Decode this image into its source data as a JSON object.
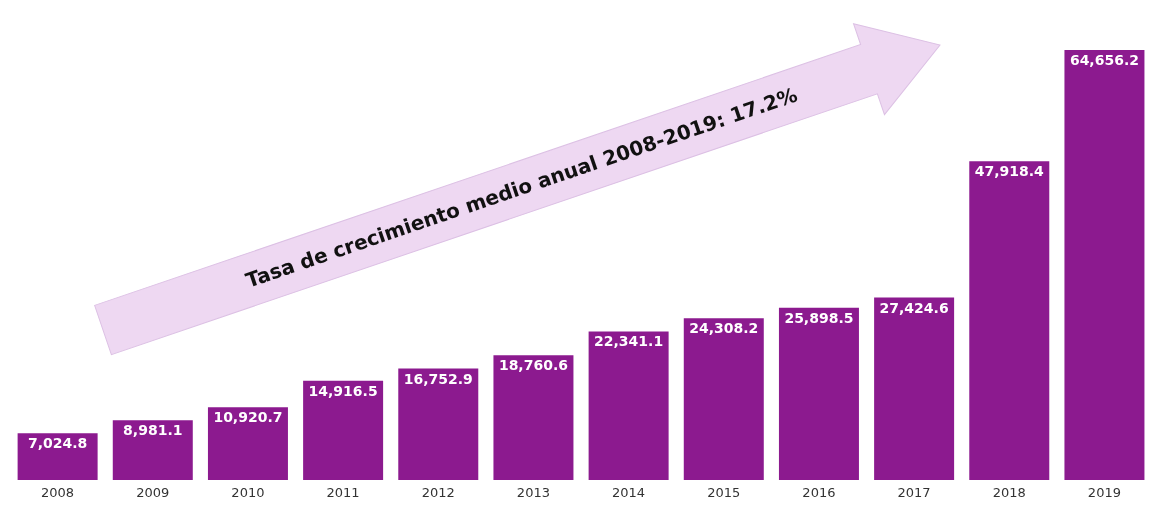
{
  "chart_data": {
    "type": "bar",
    "categories": [
      "2008",
      "2009",
      "2010",
      "2011",
      "2012",
      "2013",
      "2014",
      "2015",
      "2016",
      "2017",
      "2018",
      "2019"
    ],
    "values": [
      7024.8,
      8981.1,
      10920.7,
      14916.5,
      16752.9,
      18760.6,
      22341.1,
      24308.2,
      25898.5,
      27424.6,
      47918.4,
      64656.2
    ],
    "value_labels": [
      "7,024.8",
      "8,981.1",
      "10,920.7",
      "14,916.5",
      "16,752.9",
      "18,760.6",
      "22,341.1",
      "24,308.2",
      "25,898.5",
      "27,424.6",
      "47,918.4",
      "64,656.2"
    ],
    "color": "#8c1a8f",
    "annotations": [
      "Tasa de crecimiento  medio anual 2008-2019: 17.2%"
    ]
  }
}
